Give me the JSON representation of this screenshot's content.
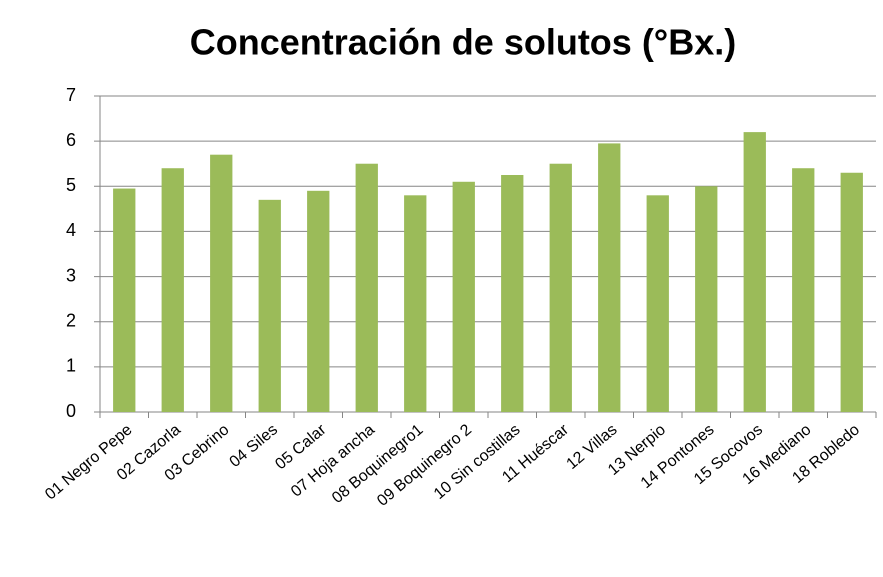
{
  "chart_data": {
    "type": "bar",
    "title": "Concentración de solutos  (°Bx.)",
    "categories": [
      "01 Negro Pepe",
      "02 Cazorla",
      "03 Cebrino",
      "04 Siles",
      "05 Calar",
      "07 Hoja ancha",
      "08 Boquinegro1",
      "09 Boquinegro 2",
      "10 Sin costillas",
      "11 Huéscar",
      "12 Villas",
      "13 Nerpio",
      "14 Pontones",
      "15 Socovos",
      "16 Mediano",
      "18 Robledo"
    ],
    "values": [
      4.95,
      5.4,
      5.7,
      4.7,
      4.9,
      5.5,
      4.8,
      5.1,
      5.25,
      5.5,
      5.95,
      4.8,
      5.0,
      6.2,
      5.4,
      5.3
    ],
    "color": "#9bbb59",
    "ylim": [
      0,
      7
    ],
    "yticks": [
      0,
      1,
      2,
      3,
      4,
      5,
      6,
      7
    ],
    "grid": true
  }
}
